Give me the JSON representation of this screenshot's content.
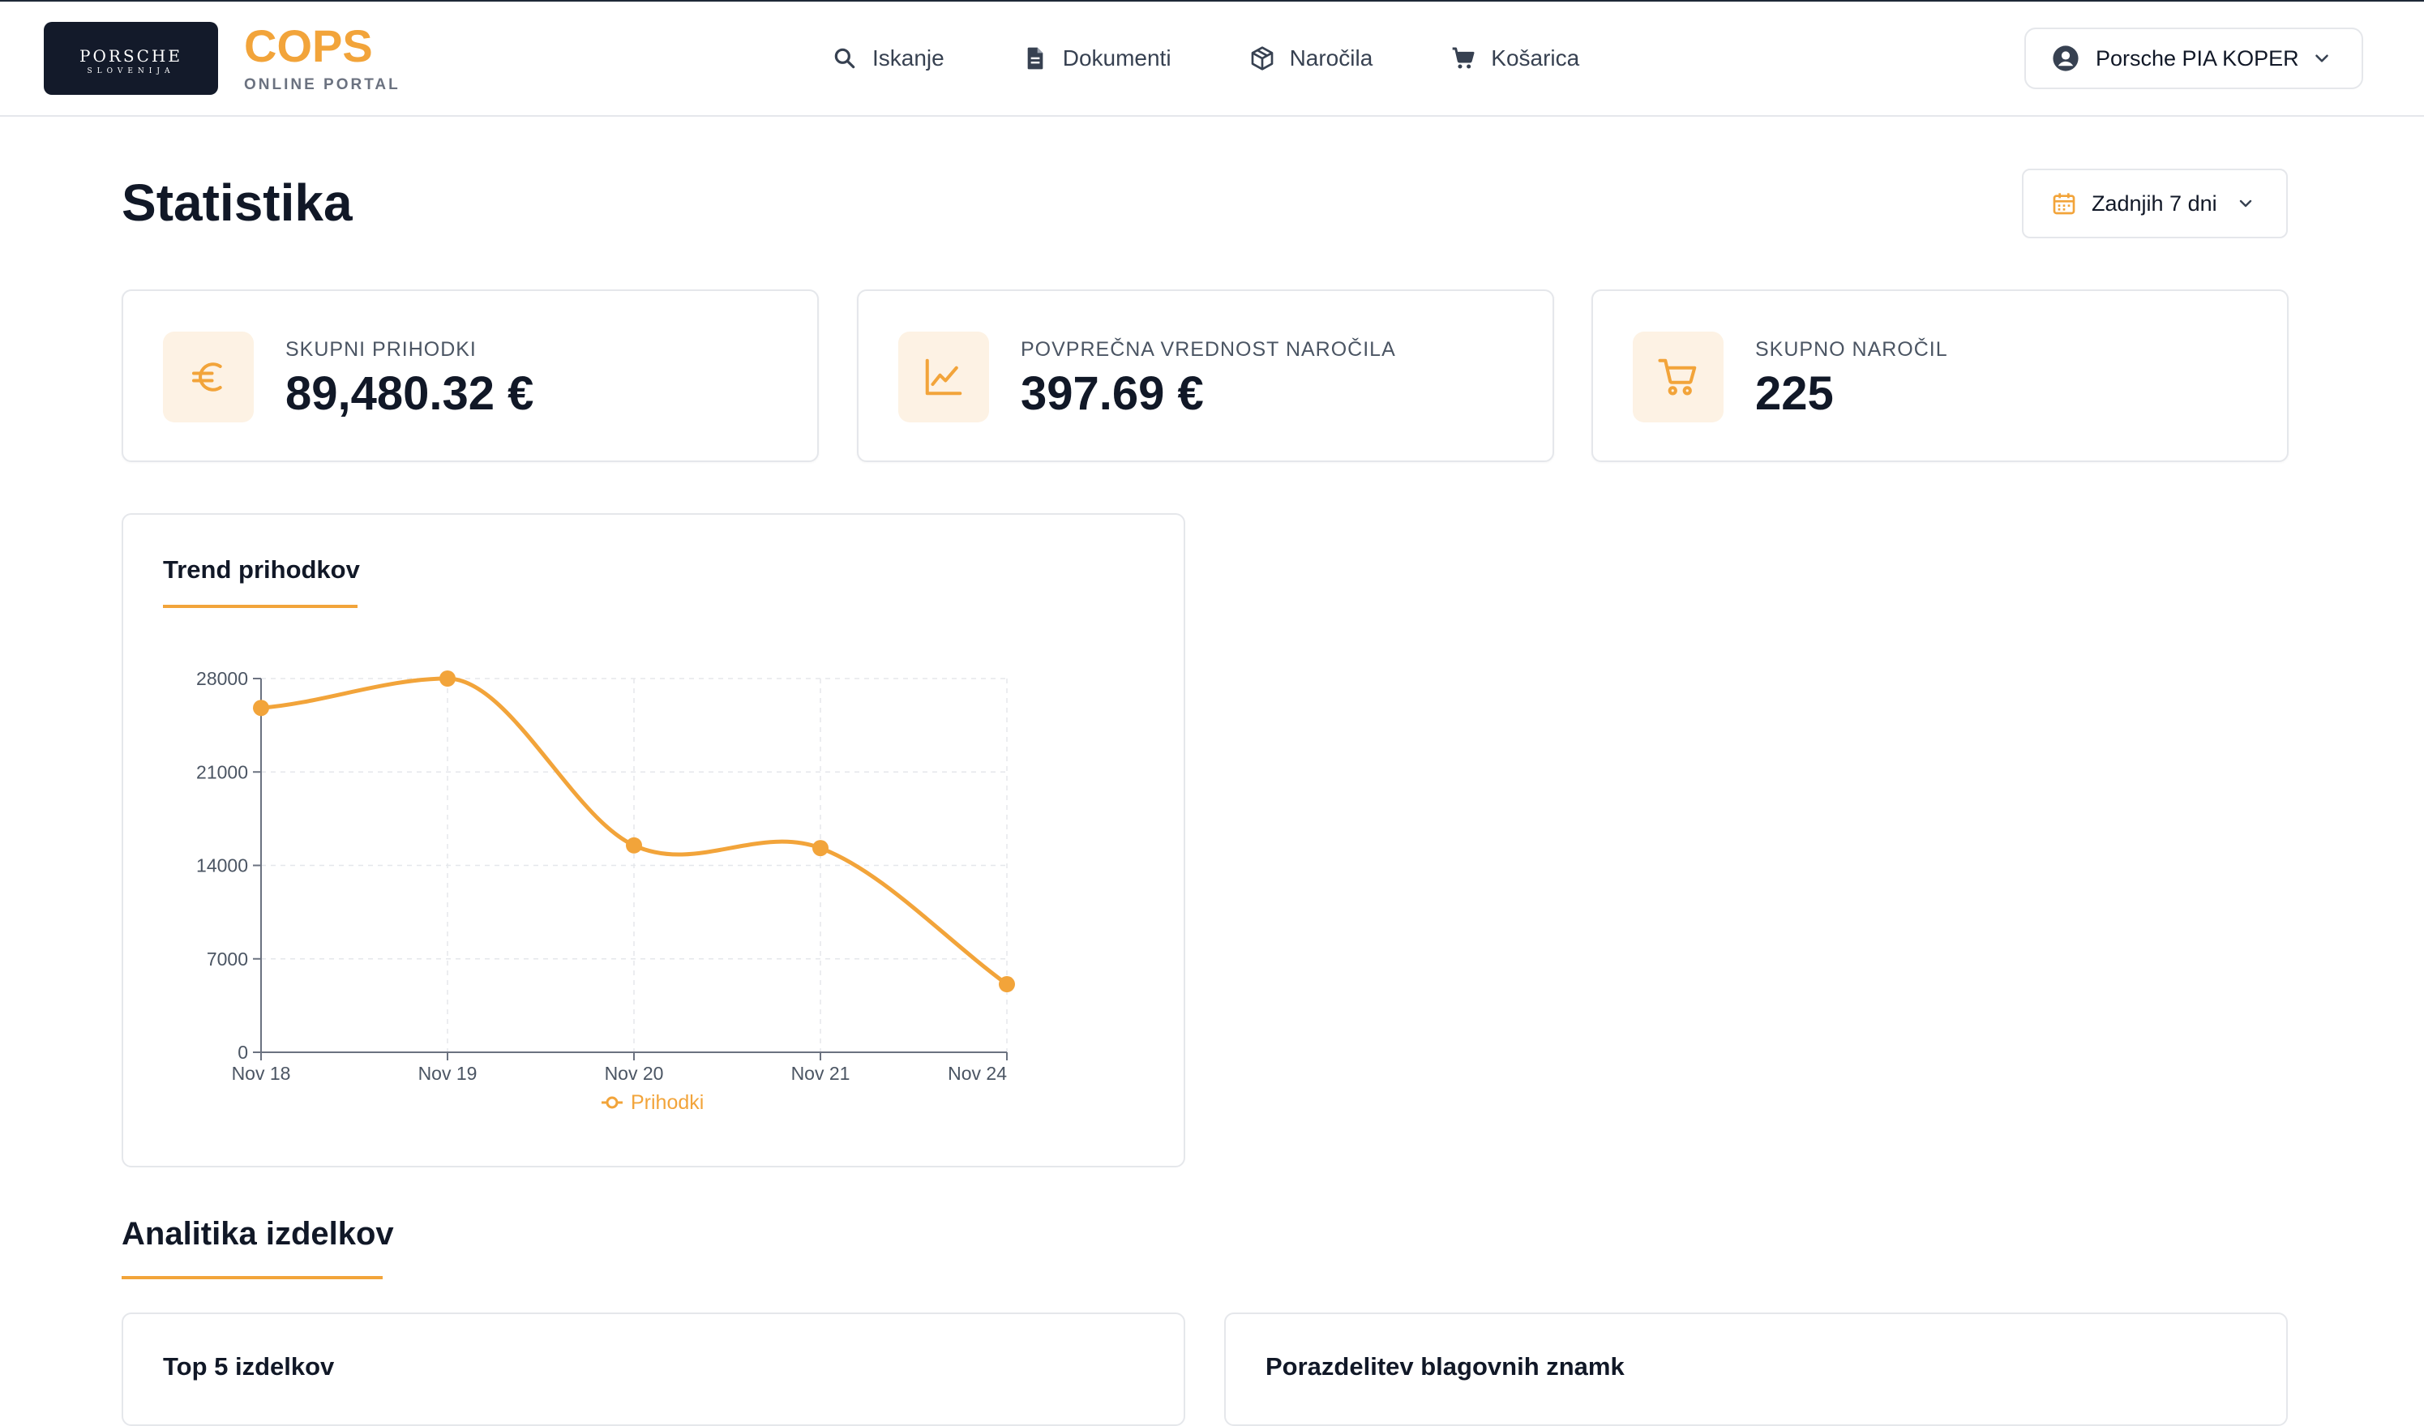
{
  "header": {
    "logo_line1": "PORSCHE",
    "logo_line2": "SLOVENIJA",
    "brand_title": "COPS",
    "brand_subtitle": "ONLINE PORTAL",
    "nav": [
      {
        "label": "Iskanje",
        "icon": "search-icon"
      },
      {
        "label": "Dokumenti",
        "icon": "document-icon"
      },
      {
        "label": "Naročila",
        "icon": "box-icon"
      },
      {
        "label": "Košarica",
        "icon": "cart-icon"
      }
    ],
    "user_name": "Porsche PIA KOPER"
  },
  "page": {
    "title": "Statistika",
    "range_label": "Zadnjih 7 dni"
  },
  "stats": [
    {
      "label": "SKUPNI PRIHODKI",
      "value": "89,480.32 €",
      "icon": "euro-icon"
    },
    {
      "label": "POVPREČNA VREDNOST NAROČILA",
      "value": "397.69 €",
      "icon": "line-chart-icon"
    },
    {
      "label": "SKUPNO NAROČIL",
      "value": "225",
      "icon": "cart-icon"
    }
  ],
  "trend_panel": {
    "title": "Trend prihodkov"
  },
  "analytics": {
    "section_title": "Analitika izdelkov",
    "top_products_title": "Top 5 izdelkov",
    "brand_distribution_title": "Porazdelitev blagovnih znamk"
  },
  "colors": {
    "accent": "#f2a43a",
    "dark": "#111827",
    "border": "#e5e7eb",
    "icon_bg": "#fdf2e4"
  },
  "chart_data": {
    "type": "line",
    "title": "",
    "xlabel": "",
    "ylabel": "",
    "categories": [
      "Nov 18",
      "Nov 19",
      "Nov 20",
      "Nov 21",
      "Nov 24"
    ],
    "series": [
      {
        "name": "Prihodki",
        "values": [
          25800,
          28000,
          15500,
          15300,
          5100
        ]
      }
    ],
    "yticks": [
      0,
      7000,
      14000,
      21000,
      28000
    ],
    "ylim": [
      0,
      28000
    ],
    "grid": true,
    "legend": "bottom-center"
  }
}
